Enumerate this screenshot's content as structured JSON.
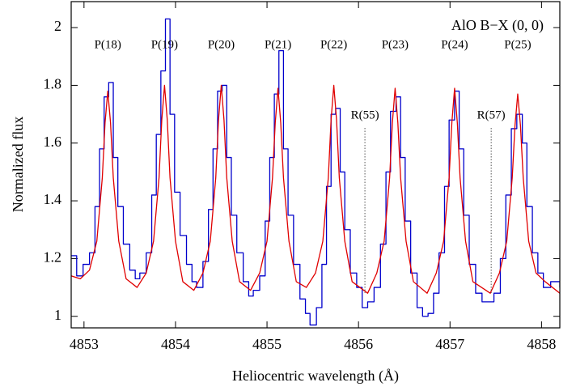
{
  "chart_data": {
    "type": "line",
    "xlabel": "Heliocentric wavelength (Å)",
    "ylabel": "Normalized flux",
    "xlim": [
      4852.86,
      4858.2
    ],
    "ylim": [
      0.96,
      2.09
    ],
    "xticks": [
      4853,
      4854,
      4855,
      4856,
      4857,
      4858
    ],
    "yticks": [
      1,
      1.2,
      1.4,
      1.6,
      1.8,
      2
    ],
    "legend": "upper right",
    "series": [
      {
        "color": "#0000cc",
        "drawstyle": "steps",
        "x": [
          4852.86,
          4852.92,
          4852.99,
          4853.06,
          4853.12,
          4853.17,
          4853.22,
          4853.27,
          4853.32,
          4853.37,
          4853.43,
          4853.5,
          4853.56,
          4853.61,
          4853.68,
          4853.74,
          4853.79,
          4853.84,
          4853.89,
          4853.94,
          4853.99,
          4854.05,
          4854.12,
          4854.18,
          4854.23,
          4854.3,
          4854.36,
          4854.41,
          4854.46,
          4854.51,
          4854.56,
          4854.61,
          4854.67,
          4854.74,
          4854.8,
          4854.85,
          4854.92,
          4854.98,
          4855.03,
          4855.08,
          4855.13,
          4855.18,
          4855.23,
          4855.29,
          4855.36,
          4855.42,
          4855.47,
          4855.54,
          4855.6,
          4855.65,
          4855.7,
          4855.75,
          4855.8,
          4855.85,
          4855.91,
          4855.98,
          4856.04,
          4856.1,
          4856.17,
          4856.24,
          4856.3,
          4856.35,
          4856.41,
          4856.46,
          4856.51,
          4856.57,
          4856.64,
          4856.7,
          4856.76,
          4856.82,
          4856.88,
          4856.94,
          4856.99,
          4857.05,
          4857.1,
          4857.15,
          4857.21,
          4857.28,
          4857.35,
          4857.42,
          4857.48,
          4857.55,
          4857.61,
          4857.67,
          4857.73,
          4857.79,
          4857.84,
          4857.9,
          4857.96,
          4858.02,
          4858.1,
          4858.2
        ],
        "values": [
          1.21,
          1.14,
          1.18,
          1.22,
          1.38,
          1.58,
          1.76,
          1.81,
          1.55,
          1.38,
          1.25,
          1.16,
          1.13,
          1.15,
          1.22,
          1.42,
          1.63,
          1.85,
          2.03,
          1.7,
          1.43,
          1.28,
          1.18,
          1.12,
          1.1,
          1.19,
          1.37,
          1.58,
          1.78,
          1.8,
          1.55,
          1.35,
          1.22,
          1.12,
          1.07,
          1.09,
          1.14,
          1.33,
          1.55,
          1.77,
          1.92,
          1.58,
          1.35,
          1.18,
          1.06,
          1.01,
          0.97,
          1.03,
          1.18,
          1.45,
          1.7,
          1.72,
          1.5,
          1.3,
          1.15,
          1.1,
          1.03,
          1.05,
          1.1,
          1.25,
          1.5,
          1.71,
          1.76,
          1.55,
          1.33,
          1.15,
          1.03,
          1.0,
          1.01,
          1.08,
          1.22,
          1.45,
          1.68,
          1.78,
          1.58,
          1.35,
          1.18,
          1.08,
          1.05,
          1.05,
          1.08,
          1.2,
          1.42,
          1.65,
          1.7,
          1.6,
          1.38,
          1.22,
          1.15,
          1.1,
          1.12,
          1.1
        ]
      },
      {
        "name": "AlO B−X (0, 0)",
        "color": "#e00000",
        "drawstyle": "smooth",
        "x": [
          4852.86,
          4852.96,
          4853.06,
          4853.14,
          4853.2,
          4853.23,
          4853.26,
          4853.29,
          4853.32,
          4853.38,
          4853.46,
          4853.58,
          4853.68,
          4853.76,
          4853.82,
          4853.85,
          4853.88,
          4853.91,
          4853.94,
          4854.0,
          4854.08,
          4854.2,
          4854.3,
          4854.38,
          4854.44,
          4854.47,
          4854.5,
          4854.53,
          4854.56,
          4854.62,
          4854.7,
          4854.82,
          4854.92,
          4855.0,
          4855.06,
          4855.09,
          4855.12,
          4855.15,
          4855.18,
          4855.24,
          4855.32,
          4855.43,
          4855.53,
          4855.61,
          4855.67,
          4855.7,
          4855.73,
          4855.76,
          4855.79,
          4855.85,
          4855.93,
          4856.1,
          4856.2,
          4856.28,
          4856.34,
          4856.37,
          4856.4,
          4856.43,
          4856.46,
          4856.52,
          4856.6,
          4856.75,
          4856.85,
          4856.93,
          4856.99,
          4857.02,
          4857.05,
          4857.08,
          4857.11,
          4857.17,
          4857.25,
          4857.44,
          4857.54,
          4857.62,
          4857.68,
          4857.71,
          4857.74,
          4857.77,
          4857.8,
          4857.86,
          4857.94,
          4858.04,
          4858.2
        ],
        "values": [
          1.14,
          1.13,
          1.16,
          1.26,
          1.48,
          1.67,
          1.78,
          1.67,
          1.48,
          1.26,
          1.13,
          1.1,
          1.15,
          1.26,
          1.48,
          1.68,
          1.8,
          1.68,
          1.48,
          1.26,
          1.12,
          1.09,
          1.15,
          1.26,
          1.48,
          1.68,
          1.8,
          1.68,
          1.48,
          1.26,
          1.12,
          1.09,
          1.15,
          1.26,
          1.48,
          1.67,
          1.79,
          1.67,
          1.48,
          1.26,
          1.12,
          1.1,
          1.15,
          1.26,
          1.48,
          1.68,
          1.8,
          1.68,
          1.48,
          1.26,
          1.12,
          1.08,
          1.15,
          1.26,
          1.48,
          1.67,
          1.79,
          1.67,
          1.48,
          1.26,
          1.12,
          1.08,
          1.15,
          1.26,
          1.48,
          1.67,
          1.79,
          1.67,
          1.48,
          1.26,
          1.12,
          1.08,
          1.15,
          1.26,
          1.48,
          1.66,
          1.77,
          1.66,
          1.48,
          1.26,
          1.15,
          1.12,
          1.08
        ]
      }
    ],
    "line_labels": [
      {
        "text": "P(18)",
        "x": 4853.26
      },
      {
        "text": "P(19)",
        "x": 4853.88
      },
      {
        "text": "P(20)",
        "x": 4854.5
      },
      {
        "text": "P(21)",
        "x": 4855.12
      },
      {
        "text": "P(22)",
        "x": 4855.73
      },
      {
        "text": "P(23)",
        "x": 4856.4
      },
      {
        "text": "P(24)",
        "x": 4857.05
      },
      {
        "text": "P(25)",
        "x": 4857.74
      }
    ],
    "marked_lines": [
      {
        "text": "R(55)",
        "x": 4856.07
      },
      {
        "text": "R(57)",
        "x": 4857.45
      }
    ]
  }
}
